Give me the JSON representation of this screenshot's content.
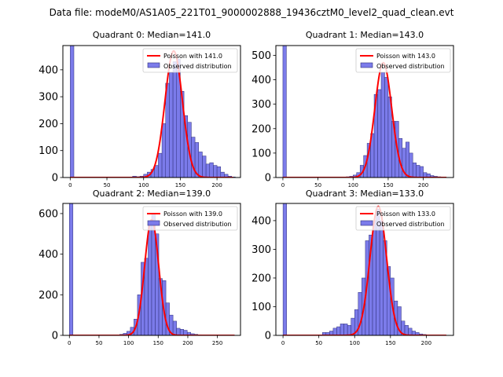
{
  "figure": {
    "suptitle": "Data file: modeM0/AS1A05_221T01_9000002888_19436cztM0_level2_quad_clean.evt"
  },
  "colors": {
    "bar_fill": "#7b7bea",
    "bar_edge": "#2e2e78",
    "fit_line": "#ff0000"
  },
  "chart_data": [
    {
      "type": "bar",
      "title": "Quadrant 0: Median=141.0",
      "series": [
        {
          "name": "Poisson with 141.0",
          "kind": "line",
          "mean": 141.0,
          "peak": 470
        },
        {
          "name": "Observed distribution",
          "kind": "histogram"
        }
      ],
      "bin_width": 5,
      "bins": [
        {
          "x": 0,
          "y": 490
        },
        {
          "x": 85,
          "y": 5
        },
        {
          "x": 90,
          "y": 3
        },
        {
          "x": 95,
          "y": 5
        },
        {
          "x": 100,
          "y": 12
        },
        {
          "x": 105,
          "y": 20
        },
        {
          "x": 110,
          "y": 30
        },
        {
          "x": 115,
          "y": 45
        },
        {
          "x": 120,
          "y": 90
        },
        {
          "x": 125,
          "y": 200
        },
        {
          "x": 130,
          "y": 350
        },
        {
          "x": 135,
          "y": 390
        },
        {
          "x": 140,
          "y": 430
        },
        {
          "x": 145,
          "y": 440
        },
        {
          "x": 150,
          "y": 320
        },
        {
          "x": 155,
          "y": 230
        },
        {
          "x": 160,
          "y": 205
        },
        {
          "x": 165,
          "y": 150
        },
        {
          "x": 170,
          "y": 130
        },
        {
          "x": 175,
          "y": 95
        },
        {
          "x": 180,
          "y": 80
        },
        {
          "x": 185,
          "y": 50
        },
        {
          "x": 190,
          "y": 55
        },
        {
          "x": 195,
          "y": 45
        },
        {
          "x": 200,
          "y": 40
        },
        {
          "x": 205,
          "y": 20
        },
        {
          "x": 210,
          "y": 12
        },
        {
          "x": 215,
          "y": 5
        },
        {
          "x": 220,
          "y": 2
        }
      ],
      "xlim": [
        -10,
        232
      ],
      "ylim": [
        0,
        490
      ],
      "xticks": [
        0,
        50,
        100,
        150,
        200
      ],
      "yticks": [
        0,
        100,
        200,
        300,
        400
      ],
      "legend_position": "top-right"
    },
    {
      "type": "bar",
      "title": "Quadrant 1: Median=143.0",
      "series": [
        {
          "name": "Poisson with 143.0",
          "kind": "line",
          "mean": 143.0,
          "peak": 470
        },
        {
          "name": "Observed distribution",
          "kind": "histogram"
        }
      ],
      "bin_width": 5,
      "bins": [
        {
          "x": 0,
          "y": 540
        },
        {
          "x": 90,
          "y": 3
        },
        {
          "x": 95,
          "y": 5
        },
        {
          "x": 100,
          "y": 10
        },
        {
          "x": 105,
          "y": 20
        },
        {
          "x": 110,
          "y": 50
        },
        {
          "x": 115,
          "y": 90
        },
        {
          "x": 120,
          "y": 140
        },
        {
          "x": 125,
          "y": 180
        },
        {
          "x": 130,
          "y": 340
        },
        {
          "x": 135,
          "y": 360
        },
        {
          "x": 140,
          "y": 430
        },
        {
          "x": 145,
          "y": 410
        },
        {
          "x": 150,
          "y": 330
        },
        {
          "x": 155,
          "y": 230
        },
        {
          "x": 160,
          "y": 230
        },
        {
          "x": 165,
          "y": 160
        },
        {
          "x": 170,
          "y": 120
        },
        {
          "x": 175,
          "y": 145
        },
        {
          "x": 180,
          "y": 100
        },
        {
          "x": 185,
          "y": 60
        },
        {
          "x": 190,
          "y": 50
        },
        {
          "x": 195,
          "y": 45
        },
        {
          "x": 200,
          "y": 20
        },
        {
          "x": 205,
          "y": 15
        },
        {
          "x": 210,
          "y": 8
        },
        {
          "x": 215,
          "y": 5
        },
        {
          "x": 220,
          "y": 3
        }
      ],
      "xlim": [
        -10,
        243
      ],
      "ylim": [
        0,
        540
      ],
      "xticks": [
        0,
        50,
        100,
        150,
        200
      ],
      "yticks": [
        0,
        100,
        200,
        300,
        400,
        500
      ],
      "legend_position": "top-right"
    },
    {
      "type": "bar",
      "title": "Quadrant 2: Median=139.0",
      "series": [
        {
          "name": "Poisson with 139.0",
          "kind": "line",
          "mean": 139.0,
          "peak": 570
        },
        {
          "name": "Observed distribution",
          "kind": "histogram"
        }
      ],
      "bin_width": 6,
      "bins": [
        {
          "x": 0,
          "y": 650
        },
        {
          "x": 85,
          "y": 5
        },
        {
          "x": 91,
          "y": 10
        },
        {
          "x": 97,
          "y": 20
        },
        {
          "x": 103,
          "y": 40
        },
        {
          "x": 109,
          "y": 80
        },
        {
          "x": 115,
          "y": 200
        },
        {
          "x": 121,
          "y": 360
        },
        {
          "x": 127,
          "y": 380
        },
        {
          "x": 133,
          "y": 560
        },
        {
          "x": 139,
          "y": 600
        },
        {
          "x": 145,
          "y": 500
        },
        {
          "x": 151,
          "y": 280
        },
        {
          "x": 157,
          "y": 270
        },
        {
          "x": 163,
          "y": 160
        },
        {
          "x": 169,
          "y": 100
        },
        {
          "x": 175,
          "y": 70
        },
        {
          "x": 181,
          "y": 35
        },
        {
          "x": 187,
          "y": 30
        },
        {
          "x": 193,
          "y": 25
        },
        {
          "x": 199,
          "y": 15
        },
        {
          "x": 205,
          "y": 8
        },
        {
          "x": 211,
          "y": 5
        },
        {
          "x": 217,
          "y": 3
        },
        {
          "x": 223,
          "y": 2
        }
      ],
      "xlim": [
        -11,
        289
      ],
      "ylim": [
        0,
        650
      ],
      "xticks": [
        0,
        50,
        100,
        150,
        200,
        250
      ],
      "yticks": [
        0,
        200,
        400,
        600
      ],
      "legend_position": "top-right"
    },
    {
      "type": "bar",
      "title": "Quadrant 3: Median=133.0",
      "series": [
        {
          "name": "Poisson with 133.0",
          "kind": "line",
          "mean": 133.0,
          "peak": 450
        },
        {
          "name": "Observed distribution",
          "kind": "histogram"
        }
      ],
      "bin_width": 5,
      "bins": [
        {
          "x": 0,
          "y": 460
        },
        {
          "x": 55,
          "y": 10
        },
        {
          "x": 60,
          "y": 10
        },
        {
          "x": 65,
          "y": 15
        },
        {
          "x": 70,
          "y": 25
        },
        {
          "x": 75,
          "y": 30
        },
        {
          "x": 80,
          "y": 40
        },
        {
          "x": 85,
          "y": 40
        },
        {
          "x": 90,
          "y": 35
        },
        {
          "x": 95,
          "y": 60
        },
        {
          "x": 100,
          "y": 90
        },
        {
          "x": 105,
          "y": 150
        },
        {
          "x": 110,
          "y": 200
        },
        {
          "x": 115,
          "y": 330
        },
        {
          "x": 120,
          "y": 350
        },
        {
          "x": 125,
          "y": 400
        },
        {
          "x": 130,
          "y": 440
        },
        {
          "x": 135,
          "y": 400
        },
        {
          "x": 140,
          "y": 330
        },
        {
          "x": 145,
          "y": 240
        },
        {
          "x": 150,
          "y": 200
        },
        {
          "x": 155,
          "y": 120
        },
        {
          "x": 160,
          "y": 100
        },
        {
          "x": 165,
          "y": 50
        },
        {
          "x": 170,
          "y": 35
        },
        {
          "x": 175,
          "y": 25
        },
        {
          "x": 180,
          "y": 15
        },
        {
          "x": 185,
          "y": 10
        },
        {
          "x": 190,
          "y": 5
        },
        {
          "x": 195,
          "y": 3
        }
      ],
      "xlim": [
        -10,
        238
      ],
      "ylim": [
        0,
        460
      ],
      "xticks": [
        0,
        50,
        100,
        150,
        200
      ],
      "yticks": [
        0,
        100,
        200,
        300,
        400
      ],
      "legend_position": "top-right"
    }
  ]
}
